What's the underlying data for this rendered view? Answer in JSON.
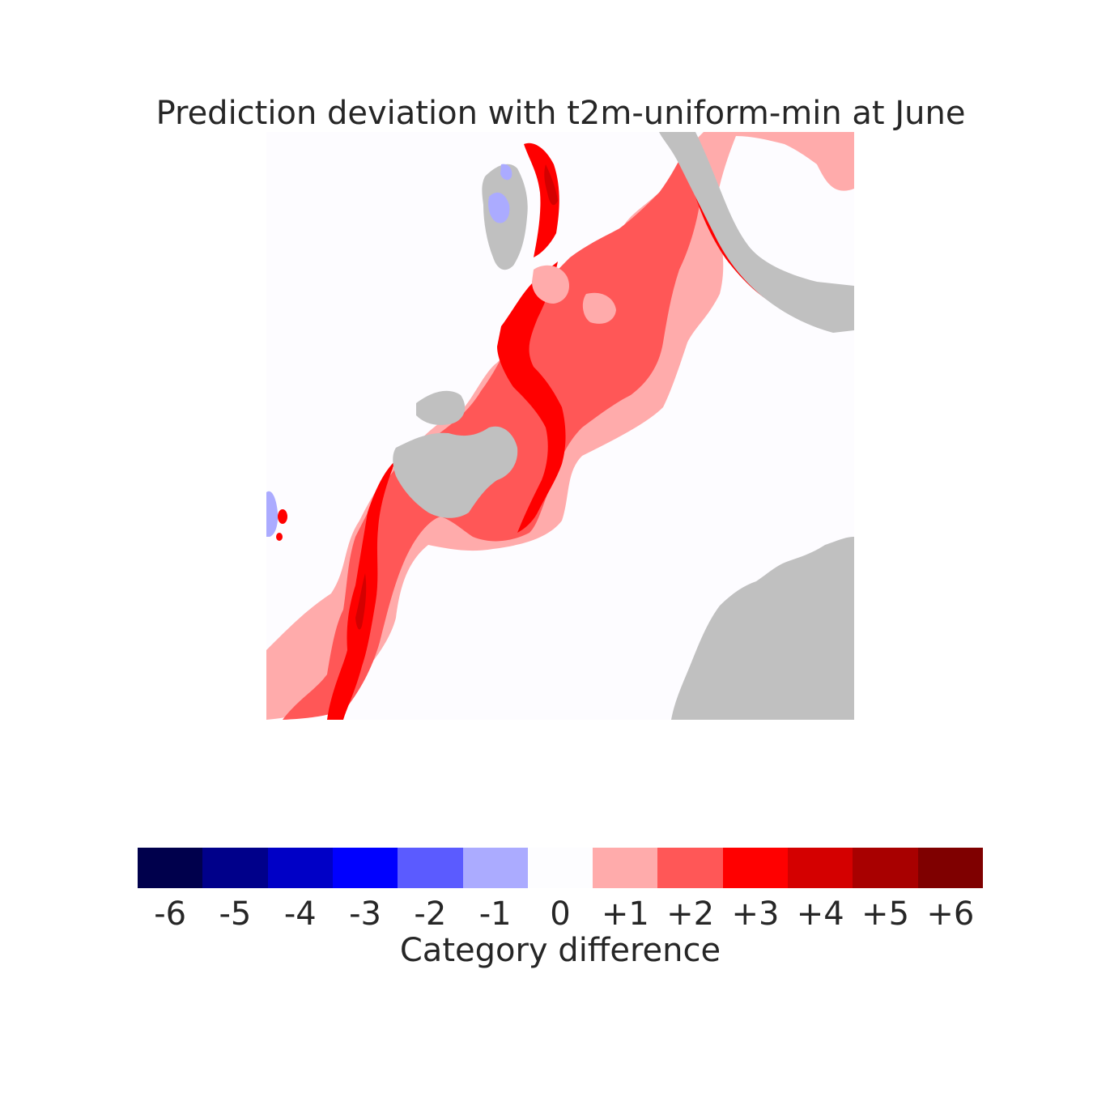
{
  "title": "Prediction deviation with t2m-uniform-min at June",
  "colorbar": {
    "label": "Category difference",
    "categories": [
      "-6",
      "-5",
      "-4",
      "-3",
      "-2",
      "-1",
      "0",
      "+1",
      "+2",
      "+3",
      "+4",
      "+5",
      "+6"
    ],
    "colors": [
      "#00004c",
      "#00008a",
      "#0000c6",
      "#0000ff",
      "#5b5bff",
      "#ababff",
      "#fdfdff",
      "#ffabab",
      "#ff5757",
      "#ff0000",
      "#d40000",
      "#a80000",
      "#7f0000"
    ]
  },
  "map": {
    "land_color": "#c0c0c0",
    "background_color": "#fdfcff"
  }
}
